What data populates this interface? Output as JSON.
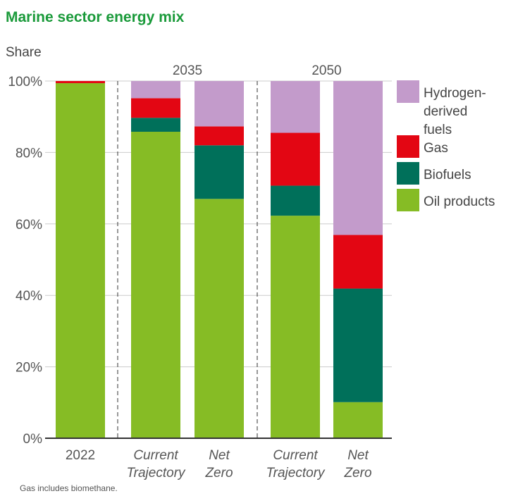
{
  "chart_data": {
    "type": "bar",
    "stacked": true,
    "title": "Marine sector energy mix",
    "ylabel": "Share",
    "ylim": [
      0,
      100
    ],
    "yticks": [
      "0%",
      "20%",
      "40%",
      "60%",
      "80%",
      "100%"
    ],
    "groups": [
      {
        "label": "",
        "bars": [
          0
        ]
      },
      {
        "label": "2035",
        "bars": [
          1,
          2
        ]
      },
      {
        "label": "2050",
        "bars": [
          3,
          4
        ]
      }
    ],
    "categories": [
      {
        "lines": [
          "2022"
        ],
        "italic": false
      },
      {
        "lines": [
          "Current",
          "Trajectory"
        ],
        "italic": true
      },
      {
        "lines": [
          "Net",
          "Zero"
        ],
        "italic": true
      },
      {
        "lines": [
          "Current",
          "Trajectory"
        ],
        "italic": true
      },
      {
        "lines": [
          "Net",
          "Zero"
        ],
        "italic": true
      }
    ],
    "series": [
      {
        "name": "Oil products",
        "color": "#86bc25",
        "values": [
          99.4,
          85.8,
          67.0,
          62.3,
          10.1
        ]
      },
      {
        "name": "Biofuels",
        "color": "#00705a",
        "values": [
          0,
          3.9,
          15.0,
          8.4,
          31.8
        ]
      },
      {
        "name": "Gas",
        "color": "#e30613",
        "values": [
          0.6,
          5.5,
          5.3,
          14.8,
          15.0
        ]
      },
      {
        "name": "Hydrogen-derived fuels",
        "color": "#c39bcb",
        "values": [
          0,
          4.8,
          12.7,
          14.5,
          43.1
        ]
      }
    ],
    "legend": {
      "placement": "right",
      "items": [
        {
          "lines": [
            "Hydrogen-",
            "derived",
            "fuels"
          ],
          "color": "#c39bcb"
        },
        {
          "lines": [
            "Gas"
          ],
          "color": "#e30613"
        },
        {
          "lines": [
            "Biofuels"
          ],
          "color": "#00705a"
        },
        {
          "lines": [
            "Oil products"
          ],
          "color": "#86bc25"
        }
      ]
    },
    "grid": true,
    "note": "Gas includes biomethane."
  }
}
